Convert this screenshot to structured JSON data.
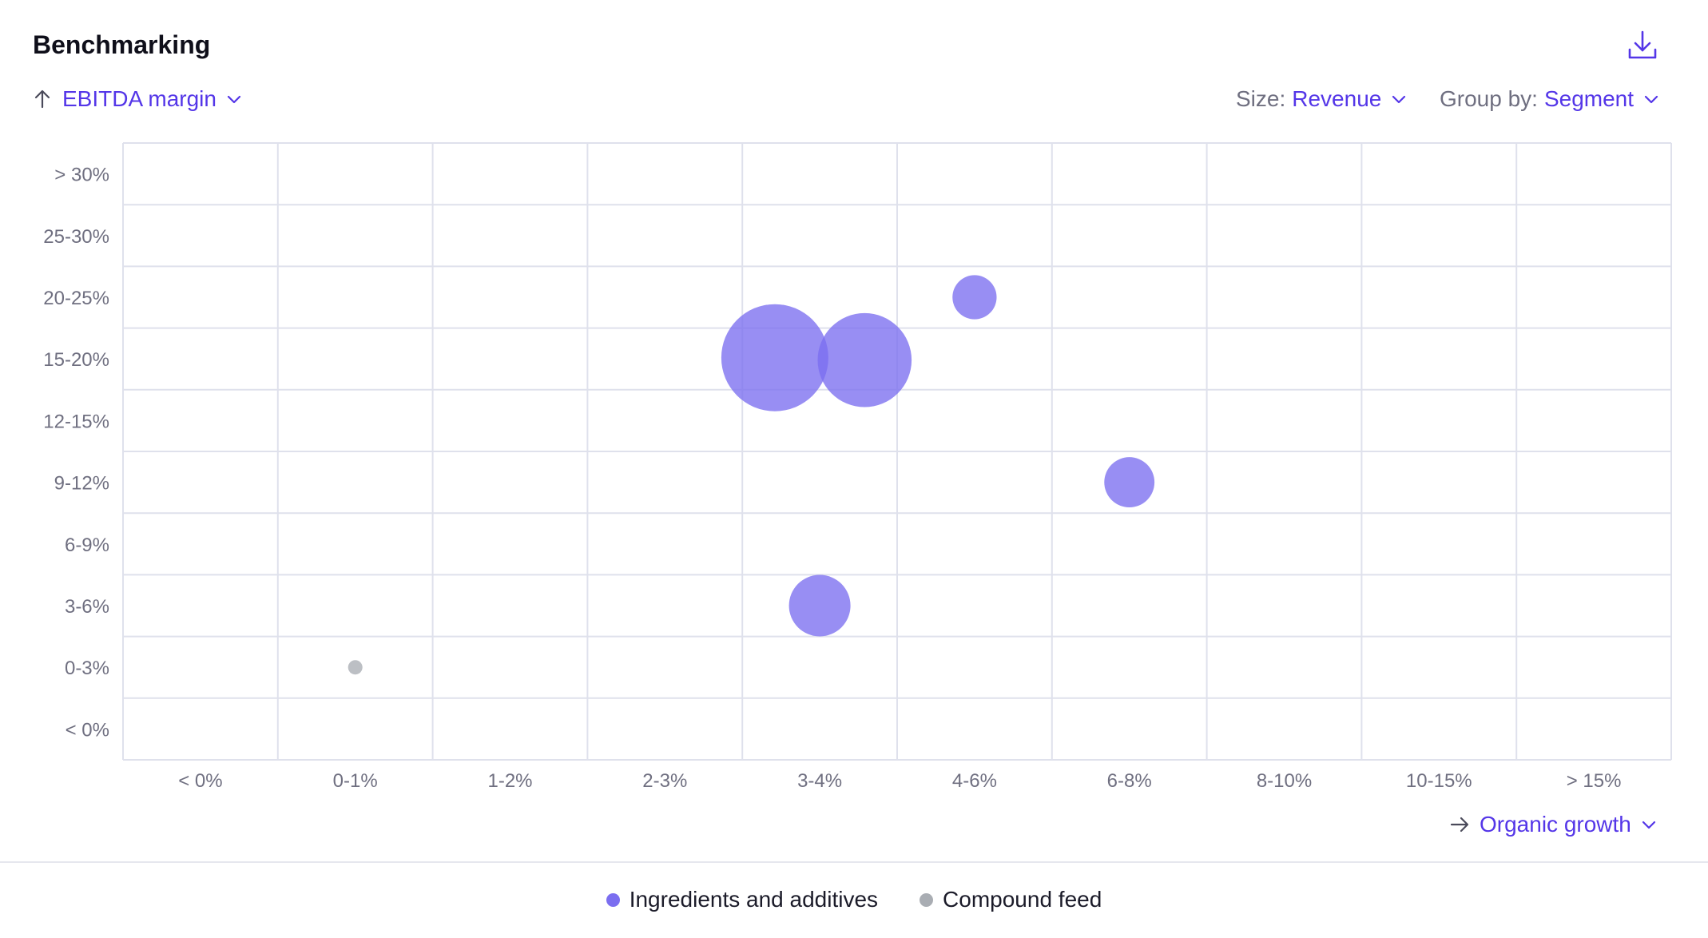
{
  "header": {
    "title": "Benchmarking",
    "download_icon": "download-icon"
  },
  "controls": {
    "y_axis_label": "EBITDA margin",
    "size_prefix": "Size:",
    "size_value": "Revenue",
    "group_prefix": "Group by:",
    "group_value": "Segment",
    "x_axis_label": "Organic growth"
  },
  "colors": {
    "accent": "#5436e8",
    "bubble_purple": "#7b6ef0",
    "bubble_gray": "#a9adb3",
    "grid": "#dfe1ec",
    "tick_text": "#6f6f80"
  },
  "chart_data": {
    "type": "bubble",
    "xlabel": "Organic growth",
    "ylabel": "EBITDA margin",
    "size_by": "Revenue",
    "group_by": "Segment",
    "x_categories": [
      "< 0%",
      "0-1%",
      "1-2%",
      "2-3%",
      "3-4%",
      "4-6%",
      "6-8%",
      "8-10%",
      "10-15%",
      "> 15%"
    ],
    "y_categories": [
      "< 0%",
      "0-3%",
      "3-6%",
      "6-9%",
      "9-12%",
      "12-15%",
      "15-20%",
      "20-25%",
      "25-30%",
      "> 30%"
    ],
    "grid": true,
    "legend_position": "bottom-center",
    "series": [
      {
        "name": "Ingredients and additives",
        "color": "#7b6ef0",
        "points": [
          {
            "x": "3-4%",
            "y": "15-20%",
            "size": 100
          },
          {
            "x": "3-4%",
            "y": "15-20%",
            "size": 77
          },
          {
            "x": "4-6%",
            "y": "20-25%",
            "size": 17
          },
          {
            "x": "6-8%",
            "y": "9-12%",
            "size": 22
          },
          {
            "x": "3-4%",
            "y": "3-6%",
            "size": 33
          }
        ]
      },
      {
        "name": "Compound feed",
        "color": "#a9adb3",
        "points": [
          {
            "x": "0-1%",
            "y": "0-3%",
            "size": 1.2
          }
        ]
      }
    ]
  }
}
